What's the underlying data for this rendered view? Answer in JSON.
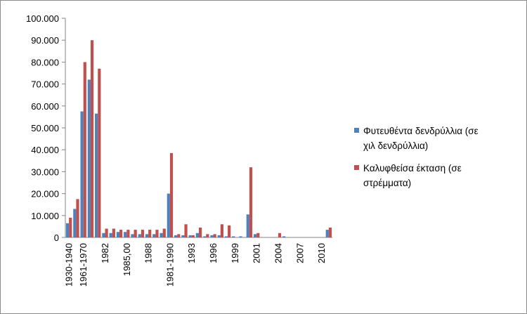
{
  "chart_data": {
    "type": "bar",
    "title": "",
    "xlabel": "",
    "ylabel": "",
    "ylim": [
      0,
      100000
    ],
    "y_ticks": [
      "0",
      "10.000",
      "20.000",
      "30.000",
      "40.000",
      "50.000",
      "60.000",
      "70.000",
      "80.000",
      "90.000",
      "100.000"
    ],
    "grid": false,
    "legend_position": "right",
    "categories": [
      "1930-1940",
      "",
      "1961-1970",
      "",
      "",
      "1982",
      "",
      "",
      "1985,00",
      "",
      "",
      "1988",
      "",
      "",
      "1981-1990",
      "",
      "",
      "1993",
      "",
      "",
      "1996",
      "",
      "",
      "1999",
      "",
      "",
      "2001",
      "",
      "",
      "2004",
      "",
      "",
      "2007",
      "",
      "",
      "2010",
      ""
    ],
    "series": [
      {
        "name": "Φυτευθέντα δενδρύλλια (σε χιλ δενδρύλλια)",
        "color": "#4f81bd",
        "values": [
          6500,
          13000,
          57500,
          72000,
          56500,
          2000,
          2000,
          2500,
          2500,
          1500,
          1500,
          1500,
          1500,
          2000,
          20000,
          1000,
          1000,
          1000,
          2000,
          500,
          1000,
          1000,
          500,
          500,
          500,
          10500,
          1500,
          0,
          0,
          0,
          500,
          0,
          0,
          0,
          0,
          0,
          3500
        ]
      },
      {
        "name": "Καλυφθείσα έκταση (σε στρέμματα)",
        "color": "#c0504d",
        "values": [
          9000,
          17500,
          80000,
          90000,
          77000,
          4000,
          4000,
          3500,
          3500,
          3500,
          3500,
          3500,
          3500,
          4000,
          38500,
          1500,
          6000,
          1000,
          4500,
          1500,
          1500,
          6000,
          5500,
          0,
          0,
          32000,
          2000,
          0,
          0,
          2000,
          0,
          0,
          0,
          0,
          0,
          0,
          4500
        ]
      }
    ]
  }
}
